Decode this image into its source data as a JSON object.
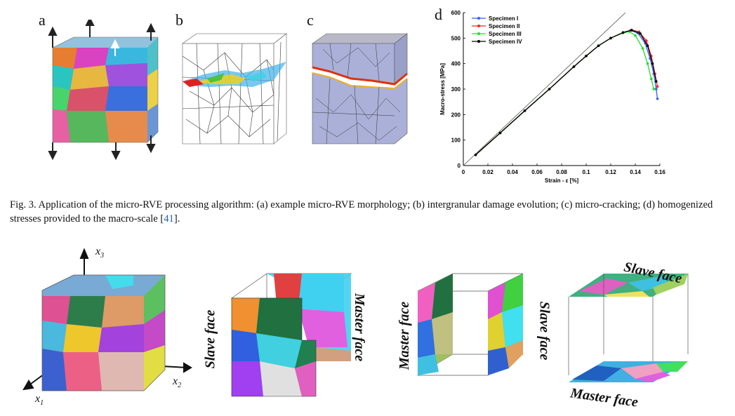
{
  "panels": {
    "a": "a",
    "b": "b",
    "c": "c",
    "d": "d"
  },
  "caption": {
    "text": "Fig. 3.  Application of the micro-RVE processing algorithm: (a) example micro-RVE morphology; (b) intergranular damage evolution; (c) micro-cracking; (d) homogenized stresses provided to the macro-scale [",
    "ref": "41",
    "end": "]."
  },
  "bottom_labels": {
    "x3": "x",
    "x3_sub": "3",
    "x2": "x",
    "x2_sub": "2",
    "x1": "x",
    "x1_sub": "1",
    "cube2_slave": "Slave face",
    "cube2_master": "Master face",
    "cube3_master": "Master face",
    "cube3_slave": "Slave face",
    "cube4_slave": "Slave face",
    "cube4_master": "Master face"
  },
  "chart_data": {
    "type": "line",
    "xlabel": "Strain - ε [%]",
    "ylabel": "Macro-stress [MPa]",
    "xlim": [
      0,
      0.16
    ],
    "ylim": [
      0,
      600
    ],
    "x_ticks": [
      "0",
      "0.02",
      "0.04",
      "0.06",
      "0.08",
      "0.1",
      "0.12",
      "0.14",
      "0.16"
    ],
    "y_ticks": [
      "0",
      "100",
      "200",
      "300",
      "400",
      "500",
      "600"
    ],
    "legend_position": "top-left",
    "elastic_line": {
      "x": [
        0,
        0.132
      ],
      "y": [
        0,
        600
      ]
    },
    "series": [
      {
        "name": "Specimen I",
        "color": "#2f5fff",
        "x": [
          0.01,
          0.03,
          0.05,
          0.07,
          0.09,
          0.1,
          0.11,
          0.12,
          0.13,
          0.136,
          0.142,
          0.148,
          0.152,
          0.155,
          0.157,
          0.158
        ],
        "y": [
          42,
          128,
          215,
          300,
          388,
          430,
          470,
          500,
          522,
          530,
          520,
          480,
          420,
          360,
          300,
          262
        ]
      },
      {
        "name": "Specimen II",
        "color": "#ff2020",
        "x": [
          0.01,
          0.03,
          0.05,
          0.07,
          0.09,
          0.1,
          0.11,
          0.12,
          0.13,
          0.137,
          0.143,
          0.149,
          0.153,
          0.156,
          0.158
        ],
        "y": [
          42,
          128,
          215,
          300,
          388,
          430,
          470,
          500,
          522,
          532,
          525,
          490,
          430,
          360,
          310
        ]
      },
      {
        "name": "Specimen III",
        "color": "#22dd22",
        "x": [
          0.01,
          0.03,
          0.05,
          0.07,
          0.09,
          0.1,
          0.11,
          0.12,
          0.13,
          0.135,
          0.14,
          0.146,
          0.15,
          0.153,
          0.155
        ],
        "y": [
          42,
          128,
          215,
          300,
          388,
          430,
          470,
          500,
          520,
          526,
          510,
          460,
          400,
          340,
          300
        ]
      },
      {
        "name": "Specimen IV",
        "color": "#000000",
        "x": [
          0.01,
          0.03,
          0.05,
          0.07,
          0.09,
          0.1,
          0.11,
          0.12,
          0.13,
          0.137,
          0.144,
          0.15,
          0.154,
          0.157
        ],
        "y": [
          42,
          128,
          215,
          300,
          388,
          430,
          470,
          500,
          522,
          531,
          518,
          470,
          400,
          330
        ]
      }
    ]
  }
}
